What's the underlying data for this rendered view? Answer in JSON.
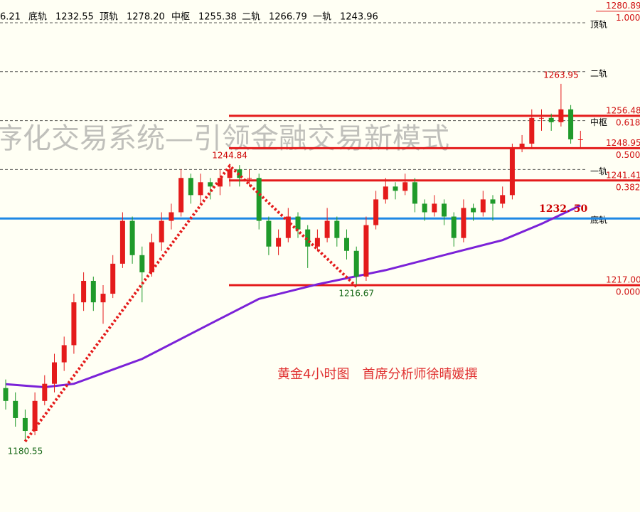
{
  "chart_data": {
    "type": "candlestick",
    "title": "序化交易系统—引领金融交易新模式",
    "caption": "黄金4小时图　首席分析师徐晴媛撰",
    "header_fragment": "6.21",
    "rails": [
      {
        "name": "底轨",
        "value": {
          "value": 1232.55,
          "label": "1232.55"
        }
      },
      {
        "name": "顶轨",
        "value": {
          "value": 1278.2,
          "label": "1278.20"
        }
      },
      {
        "name": "中枢",
        "value": {
          "value": 1255.38,
          "label": "1255.38"
        }
      },
      {
        "name": "二轨",
        "value": {
          "value": 1266.79,
          "label": "1266.79"
        }
      },
      {
        "name": "一轨",
        "value": {
          "value": 1243.96,
          "label": "1243.96"
        }
      }
    ],
    "ylim": [
      1164.1,
      1283.5
    ],
    "candles": [
      [
        1193,
        1195,
        1188,
        1190
      ],
      [
        1190,
        1192,
        1184,
        1186
      ],
      [
        1186,
        1188,
        1180.55,
        1183
      ],
      [
        1183,
        1192,
        1182,
        1190
      ],
      [
        1190,
        1196,
        1189,
        1194
      ],
      [
        1194,
        1201,
        1192,
        1199
      ],
      [
        1199,
        1205,
        1197,
        1203
      ],
      [
        1203,
        1215,
        1201,
        1213
      ],
      [
        1213,
        1220,
        1211,
        1218
      ],
      [
        1218,
        1219,
        1211,
        1213
      ],
      [
        1213,
        1217,
        1208,
        1215
      ],
      [
        1215,
        1224,
        1214,
        1222
      ],
      [
        1222,
        1234,
        1221,
        1232
      ],
      [
        1232,
        1233,
        1222,
        1224
      ],
      [
        1224,
        1226,
        1213,
        1220
      ],
      [
        1220,
        1229,
        1219,
        1227
      ],
      [
        1227,
        1234,
        1225,
        1232
      ],
      [
        1232,
        1236,
        1230,
        1234
      ],
      [
        1234,
        1244,
        1233,
        1242
      ],
      [
        1242,
        1243,
        1236,
        1238
      ],
      [
        1238,
        1243,
        1236,
        1241
      ],
      [
        1241,
        1242,
        1237,
        1240
      ],
      [
        1240,
        1244,
        1238,
        1242
      ],
      [
        1242,
        1244.84,
        1240,
        1244
      ],
      [
        1244,
        1245,
        1240,
        1242
      ],
      [
        1242,
        1244,
        1240,
        1242
      ],
      [
        1242,
        1243,
        1230,
        1232
      ],
      [
        1232,
        1233,
        1224,
        1226
      ],
      [
        1226,
        1230,
        1224,
        1228
      ],
      [
        1228,
        1235,
        1227,
        1233
      ],
      [
        1233,
        1234,
        1228,
        1230
      ],
      [
        1230,
        1231,
        1221,
        1226
      ],
      [
        1226,
        1230,
        1225,
        1228
      ],
      [
        1228,
        1235,
        1227,
        1232
      ],
      [
        1232,
        1233,
        1226,
        1228
      ],
      [
        1228,
        1230,
        1223,
        1225
      ],
      [
        1225,
        1226,
        1216.67,
        1219
      ],
      [
        1219,
        1233,
        1218,
        1231
      ],
      [
        1231,
        1239,
        1230,
        1237
      ],
      [
        1237,
        1242,
        1236,
        1240
      ],
      [
        1240,
        1241,
        1237,
        1239
      ],
      [
        1239,
        1243,
        1238,
        1241
      ],
      [
        1241,
        1242,
        1234,
        1236
      ],
      [
        1236,
        1237,
        1232,
        1234
      ],
      [
        1234,
        1238,
        1233,
        1236
      ],
      [
        1236,
        1237,
        1231,
        1233
      ],
      [
        1233,
        1234,
        1226,
        1228
      ],
      [
        1228,
        1237,
        1227,
        1235
      ],
      [
        1235,
        1236,
        1232,
        1234
      ],
      [
        1234,
        1239,
        1233,
        1237
      ],
      [
        1237,
        1238,
        1232,
        1236
      ],
      [
        1236,
        1240,
        1235,
        1238
      ],
      [
        1238,
        1250,
        1237,
        1249
      ],
      [
        1249,
        1252,
        1248,
        1250
      ],
      [
        1250,
        1258,
        1249,
        1256
      ],
      [
        1256,
        1258,
        1253,
        1256
      ],
      [
        1256,
        1257,
        1253,
        1255
      ],
      [
        1255,
        1263.95,
        1254,
        1258
      ],
      [
        1258,
        1259,
        1250,
        1251
      ],
      [
        1251,
        1253,
        1249,
        1251
      ]
    ],
    "up_color": "#e41b1b",
    "down_color": "#1f9a2a",
    "ma": {
      "color": "#7b22d8",
      "x": [
        0,
        4,
        7,
        14,
        21,
        26,
        32,
        39,
        46,
        51,
        55,
        59
      ],
      "values": [
        1193.9,
        1193.2,
        1194,
        1199.8,
        1208,
        1213.8,
        1217.2,
        1220.5,
        1224.6,
        1227.5,
        1231.3,
        1235.6
      ]
    },
    "zigzag": {
      "color": "#e41b1b",
      "x": [
        2,
        23,
        36
      ],
      "values": [
        1180.55,
        1244.84,
        1216.67
      ]
    },
    "high_label_candle": 57,
    "ma_label": "1232. 50",
    "fib_levels": [
      {
        "price": 1280.89,
        "ratio": {
          "value": 1,
          "label": "1.000"
        }
      },
      {
        "price": 1256.48,
        "ratio": 0.618
      },
      {
        "price": 1248.95,
        "ratio": {
          "value": 0.5,
          "label": "0.500"
        }
      },
      {
        "price": 1241.41,
        "ratio": 0.382
      },
      {
        "price": {
          "value": 1217,
          "label": "1217.00"
        },
        "ratio": {
          "value": 0,
          "label": "0.000"
        }
      }
    ],
    "fib_color": "#e41b1b",
    "base_color": "#1e88e5"
  }
}
